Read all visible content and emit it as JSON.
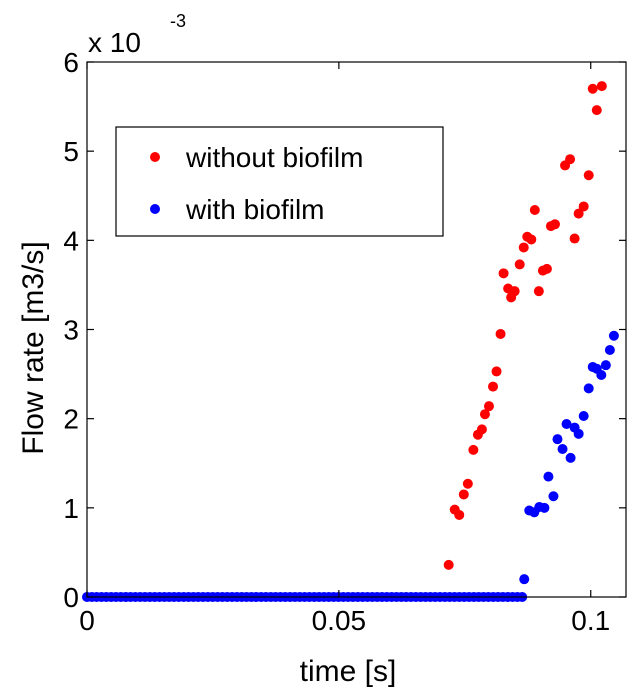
{
  "chart_data": {
    "type": "scatter",
    "title": "",
    "xlabel": "time [s]",
    "ylabel": "Flow rate [m3/s]",
    "xlim": [
      0,
      0.107
    ],
    "ylim": [
      0,
      6
    ],
    "y_multiplier_label": "x 10",
    "y_multiplier_exponent": "-3",
    "x_ticks": [
      0,
      0.05,
      0.1
    ],
    "x_tick_labels": [
      "0",
      "0.05",
      "0.1"
    ],
    "y_ticks": [
      0,
      1,
      2,
      3,
      4,
      5,
      6
    ],
    "y_tick_labels": [
      "0",
      "1",
      "2",
      "3",
      "4",
      "5",
      "6"
    ],
    "grid": false,
    "legend_position": "top-left",
    "series": [
      {
        "name": "without biofilm",
        "color": "#ff0000",
        "points": [
          [
            0.0718,
            0.36
          ],
          [
            0.073,
            0.98
          ],
          [
            0.0739,
            0.92
          ],
          [
            0.0748,
            1.15
          ],
          [
            0.0756,
            1.27
          ],
          [
            0.0767,
            1.65
          ],
          [
            0.0776,
            1.82
          ],
          [
            0.0784,
            1.88
          ],
          [
            0.079,
            2.05
          ],
          [
            0.0798,
            2.14
          ],
          [
            0.0806,
            2.36
          ],
          [
            0.0813,
            2.53
          ],
          [
            0.0821,
            2.95
          ],
          [
            0.0827,
            3.63
          ],
          [
            0.0836,
            3.46
          ],
          [
            0.0842,
            3.36
          ],
          [
            0.0849,
            3.43
          ],
          [
            0.0859,
            3.73
          ],
          [
            0.0867,
            3.92
          ],
          [
            0.0874,
            4.04
          ],
          [
            0.0882,
            4.01
          ],
          [
            0.0889,
            4.34
          ],
          [
            0.0897,
            3.43
          ],
          [
            0.0905,
            3.66
          ],
          [
            0.0913,
            3.68
          ],
          [
            0.0921,
            4.16
          ],
          [
            0.0929,
            4.18
          ],
          [
            0.0949,
            4.84
          ],
          [
            0.0959,
            4.91
          ],
          [
            0.0968,
            4.02
          ],
          [
            0.0976,
            4.3
          ],
          [
            0.0986,
            4.38
          ],
          [
            0.0996,
            4.73
          ],
          [
            0.1004,
            5.7
          ],
          [
            0.1012,
            5.46
          ],
          [
            0.1022,
            5.73
          ]
        ]
      },
      {
        "name": "with biofilm",
        "color": "#0000ff",
        "points": [
          [
            0.0868,
            0.2
          ],
          [
            0.0878,
            0.97
          ],
          [
            0.0888,
            0.95
          ],
          [
            0.0898,
            1.01
          ],
          [
            0.0908,
            1.0
          ],
          [
            0.0916,
            1.35
          ],
          [
            0.0926,
            1.13
          ],
          [
            0.0934,
            1.77
          ],
          [
            0.0944,
            1.66
          ],
          [
            0.0952,
            1.94
          ],
          [
            0.096,
            1.56
          ],
          [
            0.0968,
            1.9
          ],
          [
            0.0976,
            1.83
          ],
          [
            0.0986,
            2.03
          ],
          [
            0.0996,
            2.34
          ],
          [
            0.1004,
            2.58
          ],
          [
            0.1012,
            2.56
          ],
          [
            0.1021,
            2.49
          ],
          [
            0.103,
            2.6
          ],
          [
            0.1038,
            2.77
          ],
          [
            0.1046,
            2.93
          ]
        ],
        "flat_segment": {
          "x_start": 0.0,
          "x_end": 0.0866,
          "step": 0.00096,
          "y": 0.0
        }
      }
    ]
  }
}
